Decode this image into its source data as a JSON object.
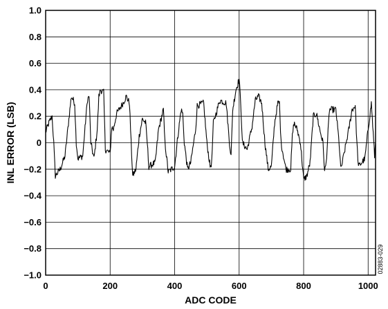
{
  "figure_id": "02883-029",
  "chart_data": {
    "type": "line",
    "title": "",
    "xlabel": "ADC CODE",
    "ylabel": "INL ERROR (LSB)",
    "xlim": [
      0,
      1023
    ],
    "ylim": [
      -1.0,
      1.0
    ],
    "x_ticks": [
      0,
      200,
      400,
      600,
      800,
      1000
    ],
    "x_tick_labels": [
      "0",
      "200",
      "400",
      "600",
      "800",
      "1000"
    ],
    "y_ticks": [
      1.0,
      0.8,
      0.6,
      0.4,
      0.2,
      0,
      -0.2,
      -0.4,
      -0.6,
      -0.8,
      -1.0
    ],
    "y_tick_labels": [
      "1.0",
      "0.8",
      "0.6",
      "0.4",
      "0.2",
      "0",
      "−0.2",
      "−0.4",
      "−0.6",
      "−0.8",
      "−1.0"
    ],
    "grid": true,
    "line_color": "#000000",
    "series": [
      {
        "x": [
          0,
          10,
          20,
          25,
          30,
          45,
          60,
          75,
          80,
          90,
          95,
          100,
          115,
          125,
          130,
          135,
          140,
          150,
          160,
          165,
          170,
          180,
          185,
          200,
          205,
          210,
          220,
          240,
          250,
          260,
          265,
          270,
          280,
          290,
          300,
          310,
          315,
          320,
          340,
          350,
          360,
          365,
          370,
          380,
          400,
          410,
          420,
          425,
          430,
          440,
          450,
          465,
          470,
          490,
          500,
          510,
          515,
          520,
          540,
          560,
          570,
          575,
          580,
          590,
          600,
          605,
          610,
          625,
          640,
          650,
          660,
          670,
          680,
          690,
          700,
          710,
          720,
          725,
          730,
          745,
          760,
          765,
          770,
          780,
          790,
          800,
          810,
          820,
          830,
          840,
          850,
          860,
          865,
          870,
          880,
          900,
          910,
          915,
          920,
          940,
          950,
          960,
          965,
          970,
          990,
          1000,
          1010,
          1020,
          1023
        ],
        "y": [
          0.08,
          0.15,
          0.2,
          0.0,
          -0.25,
          -0.2,
          -0.1,
          0.25,
          0.35,
          0.3,
          0.0,
          -0.12,
          -0.1,
          0.2,
          0.33,
          0.35,
          0.0,
          -0.12,
          0.1,
          0.35,
          0.4,
          0.38,
          -0.05,
          -0.08,
          0.12,
          0.1,
          0.22,
          0.3,
          0.35,
          0.3,
          0.0,
          -0.25,
          -0.2,
          0.05,
          0.18,
          0.15,
          0.0,
          -0.18,
          -0.15,
          0.1,
          0.2,
          0.25,
          0.0,
          -0.22,
          -0.18,
          0.05,
          0.25,
          0.22,
          0.0,
          -0.2,
          -0.15,
          0.1,
          0.28,
          0.3,
          0.0,
          -0.18,
          -0.15,
          0.15,
          0.32,
          0.3,
          0.0,
          -0.1,
          0.25,
          0.4,
          0.48,
          0.3,
          0.0,
          -0.05,
          0.12,
          0.32,
          0.35,
          0.3,
          0.0,
          -0.2,
          -0.18,
          0.15,
          0.3,
          0.3,
          0.0,
          -0.2,
          -0.2,
          0.05,
          0.15,
          0.1,
          0.0,
          -0.28,
          -0.25,
          -0.15,
          0.2,
          0.22,
          0.1,
          0.0,
          -0.22,
          -0.15,
          0.25,
          0.25,
          0.0,
          -0.2,
          -0.15,
          0.1,
          0.25,
          0.28,
          0.0,
          -0.18,
          -0.12,
          0.1,
          0.3,
          -0.1,
          0.0
        ]
      }
    ]
  }
}
